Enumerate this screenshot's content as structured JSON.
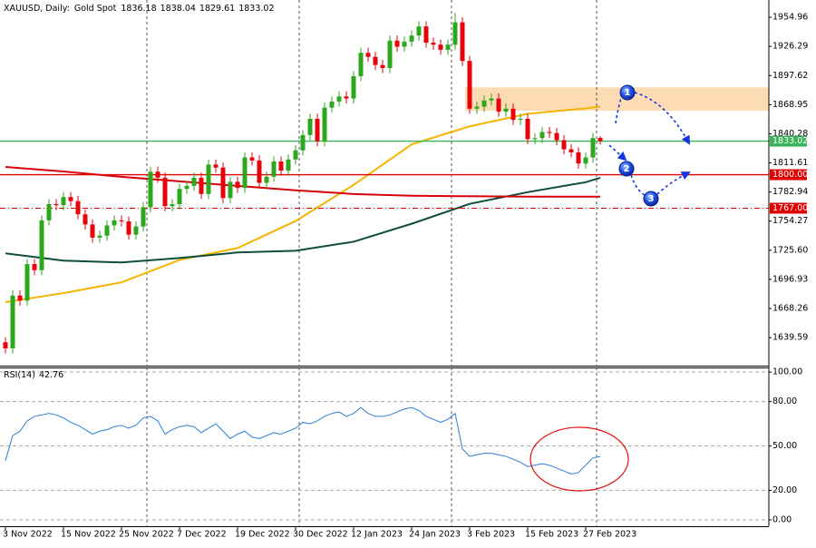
{
  "chart_data": [
    {
      "type": "candlestick",
      "title": "XAUUSD, Daily:",
      "subtitle": "Gold Spot",
      "categories": [
        "3 Nov 2022",
        null,
        null,
        null,
        null,
        null,
        null,
        null,
        "15 Nov 2022",
        null,
        null,
        null,
        null,
        null,
        null,
        null,
        "25 Nov 2022",
        null,
        null,
        null,
        null,
        null,
        null,
        null,
        "7 Dec 2022",
        null,
        null,
        null,
        null,
        null,
        null,
        null,
        "19 Dec 2022",
        null,
        null,
        null,
        null,
        null,
        null,
        null,
        "30 Dec 2022",
        null,
        null,
        null,
        null,
        null,
        null,
        null,
        "12 Jan 2023",
        null,
        null,
        null,
        null,
        null,
        null,
        null,
        "24 Jan 2023",
        null,
        null,
        null,
        null,
        null,
        null,
        null,
        "3 Feb 2023",
        null,
        null,
        null,
        null,
        null,
        null,
        null,
        "15 Feb 2023",
        null,
        null,
        null,
        null,
        null,
        null,
        null,
        "27 Feb 2023",
        null,
        null
      ],
      "open": [
        1635,
        1629,
        1681,
        1676,
        1712,
        1706,
        1755,
        1771,
        1770,
        1778,
        1774,
        1761,
        1751,
        1738,
        1740,
        1750,
        1755,
        1754,
        1741,
        1749,
        1768,
        1803,
        1797,
        1769,
        1771,
        1786,
        1789,
        1797,
        1781,
        1810,
        1807,
        1777,
        1793,
        1787,
        1817,
        1814,
        1792,
        1798,
        1813,
        1804,
        1815,
        1824,
        1839,
        1855,
        1833,
        1866,
        1872,
        1877,
        1875,
        1897,
        1920,
        1916,
        1908,
        1905,
        1932,
        1926,
        1931,
        1937,
        1946,
        1930,
        1928,
        1923,
        1928,
        1950,
        1912,
        1865,
        1867,
        1873,
        1875,
        1862,
        1865,
        1854,
        1855,
        1835,
        1836,
        1842,
        1841,
        1834,
        1825,
        1822,
        1811,
        1817,
        1836.18
      ],
      "high": [
        1640,
        1686,
        1686,
        1717,
        1717,
        1760,
        1776,
        1776,
        1783,
        1783,
        1779,
        1766,
        1756,
        1745,
        1755,
        1760,
        1760,
        1759,
        1754,
        1773,
        1808,
        1808,
        1802,
        1776,
        1791,
        1794,
        1802,
        1802,
        1815,
        1815,
        1812,
        1798,
        1798,
        1822,
        1822,
        1819,
        1803,
        1818,
        1818,
        1820,
        1829,
        1844,
        1860,
        1860,
        1871,
        1877,
        1882,
        1882,
        1902,
        1925,
        1925,
        1921,
        1913,
        1937,
        1937,
        1936,
        1942,
        1951,
        1951,
        1935,
        1933,
        1933,
        1959,
        1955,
        1917,
        1872,
        1878,
        1880,
        1880,
        1870,
        1870,
        1860,
        1860,
        1841,
        1847,
        1847,
        1846,
        1839,
        1830,
        1827,
        1822,
        1841,
        1838.04
      ],
      "low": [
        1624,
        1624,
        1671,
        1671,
        1701,
        1701,
        1750,
        1765,
        1765,
        1769,
        1756,
        1746,
        1733,
        1733,
        1735,
        1745,
        1749,
        1736,
        1736,
        1744,
        1763,
        1792,
        1764,
        1764,
        1766,
        1781,
        1784,
        1776,
        1776,
        1802,
        1772,
        1772,
        1782,
        1782,
        1809,
        1787,
        1787,
        1793,
        1799,
        1799,
        1810,
        1819,
        1834,
        1828,
        1828,
        1861,
        1867,
        1870,
        1870,
        1892,
        1911,
        1903,
        1900,
        1900,
        1921,
        1921,
        1926,
        1932,
        1925,
        1923,
        1918,
        1918,
        1923,
        1907,
        1860,
        1860,
        1862,
        1868,
        1857,
        1857,
        1849,
        1849,
        1830,
        1830,
        1831,
        1836,
        1829,
        1820,
        1817,
        1806,
        1806,
        1812,
        1829.61
      ],
      "close": [
        1629,
        1681,
        1676,
        1712,
        1706,
        1755,
        1771,
        1770,
        1778,
        1774,
        1761,
        1751,
        1738,
        1740,
        1750,
        1755,
        1754,
        1741,
        1749,
        1768,
        1803,
        1797,
        1769,
        1771,
        1786,
        1789,
        1797,
        1781,
        1810,
        1807,
        1777,
        1793,
        1787,
        1817,
        1814,
        1792,
        1798,
        1813,
        1804,
        1815,
        1824,
        1839,
        1855,
        1833,
        1866,
        1872,
        1877,
        1875,
        1897,
        1920,
        1916,
        1908,
        1905,
        1932,
        1926,
        1931,
        1937,
        1946,
        1930,
        1928,
        1923,
        1928,
        1950,
        1912,
        1865,
        1867,
        1873,
        1875,
        1862,
        1865,
        1854,
        1855,
        1835,
        1836,
        1842,
        1841,
        1834,
        1825,
        1822,
        1811,
        1817,
        1836,
        1833.02
      ],
      "up_color": "#2ca81e",
      "down_color": "#e8000b",
      "ylim": [
        1612,
        1972
      ],
      "yticks": [
        1954.96,
        1926.29,
        1897.62,
        1868.95,
        1840.28,
        1811.61,
        1782.94,
        1754.27,
        {
          "value": 1725.6,
          "label": "1725.60"
        },
        1696.93,
        1668.26,
        1639.59
      ],
      "series": [
        {
          "color": "#f5b400",
          "x": [
            0,
            8,
            16,
            24,
            32,
            40,
            48,
            56,
            64,
            72,
            80,
            82
          ],
          "values": [
            1674.5,
            1683.4,
            1694,
            1716,
            1727.8,
            1754.4,
            1789.9,
            1829.8,
            1847.6,
            1860,
            1865.3,
            1867.1
          ]
        },
        {
          "color": "#0e4d3a",
          "x": [
            0,
            8,
            16,
            24,
            32,
            40,
            48,
            56,
            64,
            72,
            80,
            82
          ],
          "values": [
            1722.5,
            1715.4,
            1713.6,
            1718,
            1723.4,
            1725.1,
            1734,
            1751.7,
            1771.3,
            1782.8,
            1792.6,
            1797
          ]
        },
        {
          "color": "#d8000a",
          "x": [
            0,
            8,
            16,
            24,
            32,
            40,
            48,
            56,
            64,
            72,
            80,
            82
          ],
          "values": [
            1807.6,
            1803.2,
            1797.9,
            1793.4,
            1789,
            1784.6,
            1781,
            1779.3,
            1778.8,
            1778.4,
            1778.4,
            1778.4
          ]
        }
      ],
      "hlines": [
        {
          "value": 1833.02,
          "color": "#3cb35a",
          "dash": false
        },
        {
          "value": 1800,
          "label": "1800.00",
          "color": "#e00000",
          "dash": false
        },
        {
          "value": 1767,
          "label": "1767.00",
          "color": "#e00000",
          "dash": true
        }
      ],
      "zone": {
        "range": [
          1863,
          1886
        ],
        "color": "#fddcb4"
      },
      "annotations": [
        "1",
        "2",
        "3"
      ]
    },
    {
      "type": "line",
      "series": [
        {
          "name": "RSI(14)",
          "color": "#2a7fd4",
          "values": [
            40,
            57,
            60,
            67,
            70,
            71,
            72,
            71,
            69,
            66,
            64,
            61,
            58,
            60,
            61,
            63,
            64,
            62,
            64,
            69,
            70,
            67,
            58,
            61,
            63,
            64,
            63,
            59,
            62,
            65,
            60,
            55,
            58,
            60,
            56,
            55,
            57,
            59,
            58,
            60,
            62,
            66,
            65,
            67,
            70,
            72,
            73,
            70,
            72,
            76,
            72,
            70,
            70,
            71,
            73,
            75,
            76,
            74,
            70,
            68,
            66,
            68,
            72,
            48,
            43,
            44,
            45,
            45,
            44,
            43,
            41,
            39,
            36,
            37,
            38,
            37,
            35,
            33,
            31,
            32,
            37,
            42,
            42.76
          ]
        }
      ],
      "ylim": [
        -4.3,
        103.1
      ],
      "yticks": [
        {
          "value": 100,
          "label": "100.00"
        },
        {
          "value": 80,
          "label": "80.00"
        },
        {
          "value": 50,
          "label": "50.00"
        },
        {
          "value": 20,
          "label": "20.00"
        },
        {
          "value": 0,
          "label": "0.00"
        }
      ],
      "grid": true
    }
  ]
}
